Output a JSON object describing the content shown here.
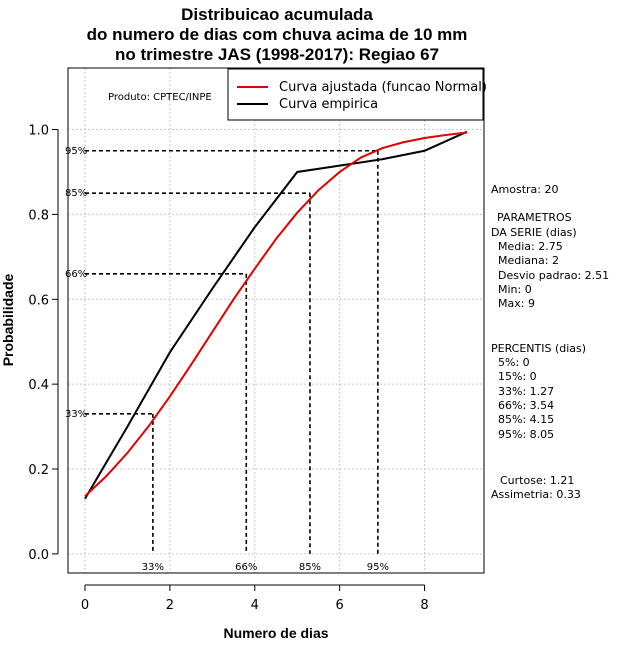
{
  "chart_data": {
    "type": "line",
    "title": [
      "Distribuicao acumulada",
      "do numero de dias com chuva acima de 10 mm",
      "no trimestre JAS (1998-2017): Regiao 67"
    ],
    "xlabel": "Numero de dias",
    "ylabel": "Probabilidade",
    "xlim": [
      -0.4,
      9.4
    ],
    "ylim": [
      -0.045,
      1.145
    ],
    "xticks": [
      0,
      2,
      4,
      6,
      8
    ],
    "yticks": [
      0.0,
      0.2,
      0.4,
      0.6,
      0.8,
      1.0
    ],
    "ytick_labels": [
      "0.0",
      "0.2",
      "0.4",
      "0.6",
      "0.8",
      "1.0"
    ],
    "grid": true,
    "credit": "Produto: CPTEC/INPE",
    "legend": {
      "position": "top-right",
      "entries": [
        {
          "label": "Curva ajustada (funcao Normal)",
          "color": "#e00000"
        },
        {
          "label": "Curva empirica",
          "color": "#000000"
        }
      ]
    },
    "series": [
      {
        "name": "Curva ajustada (funcao Normal)",
        "color": "#e00000",
        "x": [
          0,
          0.5,
          1,
          1.5,
          2,
          2.5,
          3,
          3.5,
          4,
          4.5,
          5,
          5.5,
          6,
          6.5,
          7,
          7.5,
          8,
          8.5,
          9
        ],
        "y": [
          0.136,
          0.183,
          0.238,
          0.301,
          0.371,
          0.446,
          0.523,
          0.6,
          0.672,
          0.742,
          0.804,
          0.857,
          0.9,
          0.934,
          0.956,
          0.97,
          0.98,
          0.987,
          0.993
        ]
      },
      {
        "name": "Curva empirica",
        "color": "#000000",
        "x": [
          0,
          1,
          2,
          3,
          4,
          5,
          6,
          7,
          8,
          9
        ],
        "y": [
          0.13,
          0.3,
          0.475,
          0.625,
          0.77,
          0.9,
          0.915,
          0.93,
          0.95,
          0.995
        ]
      }
    ],
    "percentile_markers": [
      {
        "label": "33%",
        "p": 0.33,
        "x": 1.6
      },
      {
        "label": "66%",
        "p": 0.66,
        "x": 3.8
      },
      {
        "label": "85%",
        "p": 0.85,
        "x": 5.3
      },
      {
        "label": "95%",
        "p": 0.95,
        "x": 6.9
      }
    ]
  },
  "stats": {
    "amostra": "Amostra: 20",
    "param_title_1": "PARAMETROS",
    "param_title_2": "DA SERIE (dias)",
    "media": "Media: 2.75",
    "mediana": "Mediana: 2",
    "desvio": "Desvio padrao: 2.51",
    "min": "Min: 0",
    "max": "Max: 9",
    "percentis_title": "PERCENTIS (dias)",
    "p5": "5%: 0",
    "p15": "15%: 0",
    "p33": "33%: 1.27",
    "p66": "66%: 3.54",
    "p85": "85%: 4.15",
    "p95": "95%: 8.05",
    "curtose": "Curtose: 1.21",
    "assimetria": "Assimetria: 0.33"
  }
}
